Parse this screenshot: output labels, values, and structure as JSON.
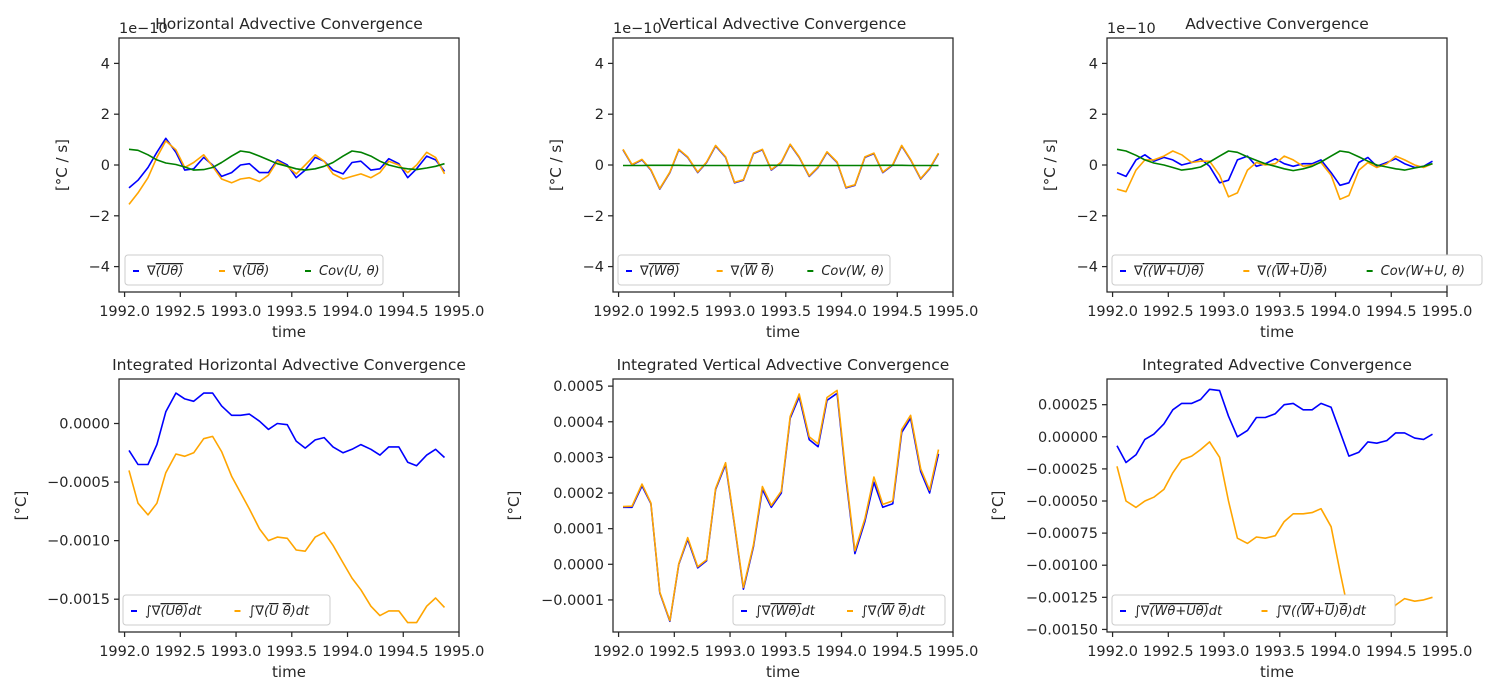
{
  "x_label": "time",
  "x_ticks": [
    "1992.0",
    "1992.5",
    "1993.0",
    "1993.5",
    "1994.0",
    "1994.5",
    "1995.0"
  ],
  "colors": {
    "blue": "#0000ff",
    "orange": "#ffa500",
    "green": "#008000"
  },
  "chart_data": [
    {
      "type": "line",
      "title": "Horizontal Advective Convergence",
      "ylabel": "[°C / s]",
      "offset_text": "1e−10",
      "ylim": [
        -5,
        5
      ],
      "xlim": [
        1991.95,
        1995.0
      ],
      "ytick_labels": [
        "−4",
        "−2",
        "0",
        "2",
        "4"
      ],
      "ytick_values": [
        -4,
        -2,
        0,
        2,
        4
      ],
      "legend_loc": "lower left",
      "legend_ncol": 3,
      "x": [
        1992.04,
        1992.12,
        1992.21,
        1992.29,
        1992.37,
        1992.46,
        1992.54,
        1992.62,
        1992.71,
        1992.79,
        1992.87,
        1992.96,
        1993.04,
        1993.12,
        1993.21,
        1993.29,
        1993.37,
        1993.46,
        1993.54,
        1993.62,
        1993.71,
        1993.79,
        1993.87,
        1993.96,
        1994.04,
        1994.12,
        1994.21,
        1994.29,
        1994.37,
        1994.46,
        1994.54,
        1994.62,
        1994.71,
        1994.79,
        1994.87
      ],
      "series": [
        {
          "name": "∇(Uθ) overbar",
          "color": "#0000ff",
          "values": [
            -0.9,
            -0.6,
            -0.1,
            0.5,
            1.05,
            0.5,
            -0.2,
            -0.15,
            0.3,
            0.0,
            -0.45,
            -0.3,
            0.0,
            0.05,
            -0.3,
            -0.3,
            0.2,
            0.0,
            -0.5,
            -0.2,
            0.3,
            0.15,
            -0.2,
            -0.35,
            0.1,
            0.15,
            -0.2,
            -0.15,
            0.25,
            0.05,
            -0.5,
            -0.15,
            0.35,
            0.2,
            -0.25
          ]
        },
        {
          "name": "∇(U θ) overbar",
          "color": "#ffa500",
          "values": [
            -1.55,
            -1.1,
            -0.5,
            0.3,
            0.95,
            0.6,
            -0.1,
            0.1,
            0.4,
            -0.05,
            -0.55,
            -0.7,
            -0.55,
            -0.5,
            -0.65,
            -0.4,
            0.15,
            -0.05,
            -0.35,
            0.0,
            0.4,
            0.15,
            -0.35,
            -0.55,
            -0.45,
            -0.35,
            -0.5,
            -0.3,
            0.15,
            0.0,
            -0.3,
            0.0,
            0.5,
            0.3,
            -0.35
          ]
        },
        {
          "name": "Cov(U, θ)",
          "color": "#008000",
          "values": [
            0.62,
            0.58,
            0.4,
            0.2,
            0.08,
            0.02,
            -0.08,
            -0.2,
            -0.18,
            -0.1,
            0.1,
            0.35,
            0.55,
            0.5,
            0.35,
            0.2,
            0.05,
            -0.05,
            -0.15,
            -0.2,
            -0.15,
            -0.05,
            0.1,
            0.35,
            0.55,
            0.5,
            0.35,
            0.15,
            0.0,
            -0.1,
            -0.15,
            -0.18,
            -0.12,
            -0.05,
            0.05
          ]
        }
      ],
      "legend": [
        "∇(Uθ)",
        "∇(Uθ)",
        "Cov(U, θ)"
      ]
    },
    {
      "type": "line",
      "title": "Vertical Advective Convergence",
      "ylabel": "[°C / s]",
      "offset_text": "1e−10",
      "ylim": [
        -5,
        5
      ],
      "xlim": [
        1991.95,
        1995.0
      ],
      "ytick_labels": [
        "−4",
        "−2",
        "0",
        "2",
        "4"
      ],
      "ytick_values": [
        -4,
        -2,
        0,
        2,
        4
      ],
      "legend_loc": "lower left",
      "legend_ncol": 3,
      "x": [
        1992.04,
        1992.12,
        1992.21,
        1992.29,
        1992.37,
        1992.46,
        1992.54,
        1992.62,
        1992.71,
        1992.79,
        1992.87,
        1992.96,
        1993.04,
        1993.12,
        1993.21,
        1993.29,
        1993.37,
        1993.46,
        1993.54,
        1993.62,
        1993.71,
        1993.79,
        1993.87,
        1993.96,
        1994.04,
        1994.12,
        1994.21,
        1994.29,
        1994.37,
        1994.46,
        1994.54,
        1994.62,
        1994.71,
        1994.79,
        1994.87
      ],
      "series": [
        {
          "name": "∇(Wθ) overbar",
          "color": "#0000ff",
          "values": [
            0.6,
            0.0,
            0.2,
            -0.2,
            -0.95,
            -0.3,
            0.6,
            0.3,
            -0.3,
            0.1,
            0.75,
            0.3,
            -0.7,
            -0.6,
            0.45,
            0.6,
            -0.2,
            0.1,
            0.8,
            0.3,
            -0.45,
            -0.1,
            0.5,
            0.1,
            -0.9,
            -0.8,
            0.3,
            0.45,
            -0.3,
            0.0,
            0.75,
            0.2,
            -0.55,
            -0.15,
            0.45
          ]
        },
        {
          "name": "∇(W θ) overbar",
          "color": "#ffa500",
          "values": [
            0.62,
            0.02,
            0.22,
            -0.18,
            -0.93,
            -0.28,
            0.62,
            0.32,
            -0.28,
            0.12,
            0.77,
            0.32,
            -0.68,
            -0.58,
            0.47,
            0.62,
            -0.18,
            0.12,
            0.82,
            0.32,
            -0.43,
            -0.08,
            0.52,
            0.12,
            -0.88,
            -0.78,
            0.32,
            0.47,
            -0.28,
            0.02,
            0.77,
            0.22,
            -0.53,
            -0.13,
            0.47
          ]
        },
        {
          "name": "Cov(W, θ)",
          "color": "#008000",
          "values": [
            -0.02,
            -0.02,
            -0.02,
            -0.01,
            -0.01,
            -0.01,
            -0.01,
            -0.02,
            -0.02,
            -0.02,
            -0.02,
            -0.02,
            -0.02,
            -0.02,
            -0.02,
            -0.02,
            -0.01,
            -0.01,
            -0.01,
            -0.02,
            -0.02,
            -0.02,
            -0.02,
            -0.02,
            -0.02,
            -0.02,
            -0.02,
            -0.02,
            -0.01,
            -0.01,
            -0.01,
            -0.02,
            -0.02,
            -0.02,
            -0.02
          ]
        }
      ],
      "legend": [
        "∇(Wθ)",
        "∇(W θ)",
        "Cov(W, θ)"
      ]
    },
    {
      "type": "line",
      "title": "Advective Convergence",
      "ylabel": "[°C / s]",
      "offset_text": "1e−10",
      "ylim": [
        -5,
        5
      ],
      "xlim": [
        1991.95,
        1995.0
      ],
      "ytick_labels": [
        "−4",
        "−2",
        "0",
        "2",
        "4"
      ],
      "ytick_values": [
        -4,
        -2,
        0,
        2,
        4
      ],
      "legend_loc": "lower left",
      "legend_ncol": 3,
      "x": [
        1992.04,
        1992.12,
        1992.21,
        1992.29,
        1992.37,
        1992.46,
        1992.54,
        1992.62,
        1992.71,
        1992.79,
        1992.87,
        1992.96,
        1993.04,
        1993.12,
        1993.21,
        1993.29,
        1993.37,
        1993.46,
        1993.54,
        1993.62,
        1993.71,
        1993.79,
        1993.87,
        1993.96,
        1994.04,
        1994.12,
        1994.21,
        1994.29,
        1994.37,
        1994.46,
        1994.54,
        1994.62,
        1994.71,
        1994.79,
        1994.87
      ],
      "series": [
        {
          "name": "∇((W+U)θ) overbar",
          "color": "#0000ff",
          "values": [
            -0.3,
            -0.45,
            0.2,
            0.4,
            0.15,
            0.3,
            0.2,
            0.0,
            0.1,
            0.25,
            -0.05,
            -0.7,
            -0.6,
            0.2,
            0.35,
            -0.05,
            0.05,
            0.25,
            0.05,
            -0.05,
            0.05,
            0.05,
            0.2,
            -0.3,
            -0.8,
            -0.7,
            0.1,
            0.3,
            -0.05,
            0.1,
            0.25,
            0.05,
            -0.1,
            -0.05,
            0.15
          ]
        },
        {
          "name": "∇((W+U) θ) overbar",
          "color": "#ffa500",
          "values": [
            -0.95,
            -1.05,
            -0.2,
            0.2,
            0.2,
            0.35,
            0.55,
            0.4,
            0.1,
            0.15,
            0.15,
            -0.4,
            -1.25,
            -1.1,
            -0.2,
            0.1,
            0.0,
            0.05,
            0.35,
            0.2,
            -0.05,
            0.0,
            0.1,
            -0.4,
            -1.35,
            -1.2,
            -0.2,
            0.1,
            -0.1,
            0.05,
            0.35,
            0.2,
            0.0,
            -0.1,
            0.05
          ]
        },
        {
          "name": "Cov(W+U, θ)",
          "color": "#008000",
          "values": [
            0.62,
            0.55,
            0.38,
            0.2,
            0.08,
            0.0,
            -0.1,
            -0.2,
            -0.15,
            -0.08,
            0.12,
            0.35,
            0.55,
            0.5,
            0.32,
            0.18,
            0.05,
            -0.05,
            -0.15,
            -0.22,
            -0.15,
            -0.05,
            0.12,
            0.35,
            0.55,
            0.5,
            0.32,
            0.15,
            0.0,
            -0.08,
            -0.15,
            -0.2,
            -0.12,
            -0.05,
            0.05
          ]
        }
      ],
      "legend": [
        "∇((W+U)θ)",
        "∇((W+U)θ)",
        "Cov(W+U, θ)"
      ]
    },
    {
      "type": "line",
      "title": "Integrated Horizontal Advective Convergence",
      "ylabel": "[°C]",
      "ylim": [
        -0.00178,
        0.00038
      ],
      "xlim": [
        1991.95,
        1995.0
      ],
      "ytick_labels": [
        "0.0000",
        "−0.0005",
        "−0.0010",
        "−0.0015"
      ],
      "ytick_values": [
        0.0,
        -0.0005,
        -0.001,
        -0.0015
      ],
      "legend_loc": "lower left",
      "legend_ncol": 2,
      "x": [
        1992.04,
        1992.12,
        1992.21,
        1992.29,
        1992.37,
        1992.46,
        1992.54,
        1992.62,
        1992.71,
        1992.79,
        1992.87,
        1992.96,
        1993.04,
        1993.12,
        1993.21,
        1993.29,
        1993.37,
        1993.46,
        1993.54,
        1993.62,
        1993.71,
        1993.79,
        1993.87,
        1993.96,
        1994.04,
        1994.12,
        1994.21,
        1994.29,
        1994.37,
        1994.46,
        1994.54,
        1994.62,
        1994.71,
        1994.79,
        1994.87
      ],
      "series": [
        {
          "name": "∫∇(Uθ)dt",
          "color": "#0000ff",
          "values": [
            -0.00023,
            -0.00035,
            -0.00035,
            -0.00018,
            0.0001,
            0.00026,
            0.00021,
            0.00019,
            0.00026,
            0.00026,
            0.00015,
            7e-05,
            7e-05,
            8e-05,
            2e-05,
            -5e-05,
            0.0,
            -1e-05,
            -0.00015,
            -0.00021,
            -0.00014,
            -0.00012,
            -0.0002,
            -0.00025,
            -0.00022,
            -0.00018,
            -0.00022,
            -0.00027,
            -0.0002,
            -0.0002,
            -0.00033,
            -0.00036,
            -0.00027,
            -0.00022,
            -0.00029
          ]
        },
        {
          "name": "∫∇(U θ)dt",
          "color": "#ffa500",
          "values": [
            -0.0004,
            -0.00068,
            -0.00078,
            -0.00068,
            -0.00042,
            -0.00026,
            -0.00028,
            -0.00025,
            -0.00013,
            -0.00011,
            -0.00024,
            -0.00045,
            -0.00059,
            -0.00073,
            -0.0009,
            -0.001,
            -0.00097,
            -0.00098,
            -0.00108,
            -0.00109,
            -0.00097,
            -0.00093,
            -0.00104,
            -0.00119,
            -0.00132,
            -0.00142,
            -0.00156,
            -0.00164,
            -0.0016,
            -0.0016,
            -0.0017,
            -0.0017,
            -0.00156,
            -0.00149,
            -0.00157
          ]
        }
      ],
      "legend": [
        "∫∇(Uθ)dt",
        "∫∇(U θ)dt"
      ]
    },
    {
      "type": "line",
      "title": "Integrated Vertical Advective Convergence",
      "ylabel": "[°C]",
      "ylim": [
        -0.00019,
        0.00052
      ],
      "xlim": [
        1991.95,
        1995.0
      ],
      "ytick_labels": [
        "−0.0001",
        "0.0000",
        "0.0001",
        "0.0002",
        "0.0003",
        "0.0004",
        "0.0005"
      ],
      "ytick_values": [
        -0.0001,
        0.0,
        0.0001,
        0.0002,
        0.0003,
        0.0004,
        0.0005
      ],
      "legend_loc": "lower right",
      "legend_ncol": 2,
      "x": [
        1992.04,
        1992.12,
        1992.21,
        1992.29,
        1992.37,
        1992.46,
        1992.54,
        1992.62,
        1992.71,
        1992.79,
        1992.87,
        1992.96,
        1993.04,
        1993.12,
        1993.21,
        1993.29,
        1993.37,
        1993.46,
        1993.54,
        1993.62,
        1993.71,
        1993.79,
        1993.87,
        1993.96,
        1994.04,
        1994.12,
        1994.21,
        1994.29,
        1994.37,
        1994.46,
        1994.54,
        1994.62,
        1994.71,
        1994.79,
        1994.87
      ],
      "series": [
        {
          "name": "∫∇(Wθ)dt",
          "color": "#0000ff",
          "values": [
            0.00016,
            0.00016,
            0.00022,
            0.00017,
            -8e-05,
            -0.00016,
            0.0,
            7e-05,
            -1e-05,
            1e-05,
            0.00021,
            0.00028,
            0.00011,
            -7e-05,
            5e-05,
            0.00021,
            0.00016,
            0.0002,
            0.00041,
            0.00047,
            0.00035,
            0.00033,
            0.00046,
            0.00048,
            0.00024,
            3e-05,
            0.00012,
            0.00023,
            0.00016,
            0.00017,
            0.00037,
            0.00041,
            0.00026,
            0.0002,
            0.00031
          ]
        },
        {
          "name": "∫∇(W θ)dt",
          "color": "#ffa500",
          "values": [
            0.000162,
            0.000163,
            0.000225,
            0.000172,
            -7.8e-05,
            -0.000158,
            2e-06,
            7.5e-05,
            -7e-06,
            1.3e-05,
            0.000213,
            0.000285,
            0.000113,
            -6.5e-05,
            5.5e-05,
            0.000218,
            0.000165,
            0.000205,
            0.000415,
            0.000478,
            0.000358,
            0.000338,
            0.000468,
            0.000488,
            0.000248,
            3.8e-05,
            0.000128,
            0.000245,
            0.000168,
            0.000178,
            0.000378,
            0.000418,
            0.000268,
            0.000208,
            0.000322
          ]
        }
      ],
      "legend": [
        "∫∇(Wθ)dt",
        "∫∇(W θ)dt"
      ]
    },
    {
      "type": "line",
      "title": "Integrated Advective Convergence",
      "ylabel": "[°C]",
      "ylim": [
        -0.00152,
        0.00045
      ],
      "xlim": [
        1991.95,
        1995.0
      ],
      "ytick_labels": [
        "0.00025",
        "0.00000",
        "−0.00025",
        "−0.00050",
        "−0.00075",
        "−0.00100",
        "−0.00125",
        "−0.00150"
      ],
      "ytick_values": [
        0.00025,
        0.0,
        -0.00025,
        -0.0005,
        -0.00075,
        -0.001,
        -0.00125,
        -0.0015
      ],
      "legend_loc": "lower left",
      "legend_ncol": 2,
      "x": [
        1992.04,
        1992.12,
        1992.21,
        1992.29,
        1992.37,
        1992.46,
        1992.54,
        1992.62,
        1992.71,
        1992.79,
        1992.87,
        1992.96,
        1993.04,
        1993.12,
        1993.21,
        1993.29,
        1993.37,
        1993.46,
        1993.54,
        1993.62,
        1993.71,
        1993.79,
        1993.87,
        1993.96,
        1994.04,
        1994.12,
        1994.21,
        1994.29,
        1994.37,
        1994.46,
        1994.54,
        1994.62,
        1994.71,
        1994.79,
        1994.87
      ],
      "series": [
        {
          "name": "∫∇(Wθ+Uθ)dt",
          "color": "#0000ff",
          "values": [
            -7e-05,
            -0.0002,
            -0.00014,
            -2e-05,
            2e-05,
            0.0001,
            0.00021,
            0.00026,
            0.00026,
            0.00029,
            0.00037,
            0.00036,
            0.00016,
            0.0,
            5e-05,
            0.00015,
            0.00015,
            0.00018,
            0.00025,
            0.00026,
            0.00021,
            0.00021,
            0.00026,
            0.00023,
            4e-05,
            -0.00015,
            -0.00012,
            -4e-05,
            -5e-05,
            -3e-05,
            3e-05,
            3e-05,
            -1e-05,
            -2e-05,
            2e-05
          ]
        },
        {
          "name": "∫∇((W+U) θ)dt",
          "color": "#ffa500",
          "values": [
            -0.00023,
            -0.0005,
            -0.00055,
            -0.0005,
            -0.00047,
            -0.00041,
            -0.00028,
            -0.00018,
            -0.00015,
            -0.0001,
            -4e-05,
            -0.00016,
            -0.0005,
            -0.00079,
            -0.00083,
            -0.00078,
            -0.00079,
            -0.00077,
            -0.00066,
            -0.0006,
            -0.0006,
            -0.00059,
            -0.00056,
            -0.0007,
            -0.00105,
            -0.00138,
            -0.00138,
            -0.00136,
            -0.00142,
            -0.0014,
            -0.00131,
            -0.00126,
            -0.00128,
            -0.00127,
            -0.00125
          ]
        }
      ],
      "legend": [
        "∫∇(Wθ+Uθ)dt",
        "∫∇((W+U)θ)dt"
      ]
    }
  ]
}
